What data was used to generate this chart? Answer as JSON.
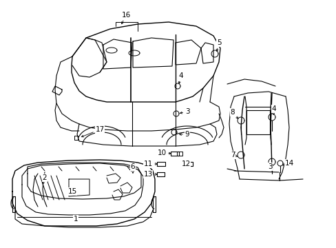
{
  "bg_color": "#ffffff",
  "line_color": "#000000",
  "fig_width": 4.89,
  "fig_height": 3.6,
  "dpi": 100,
  "van_ox": 0.08,
  "van_oy": 1.3,
  "van_scale": 1.0,
  "trunk_ox": 0.12,
  "trunk_oy": 0.05,
  "trunk_scale": 0.9,
  "door_ox": 3.3,
  "door_oy": 1.18,
  "door_scale": 0.8
}
